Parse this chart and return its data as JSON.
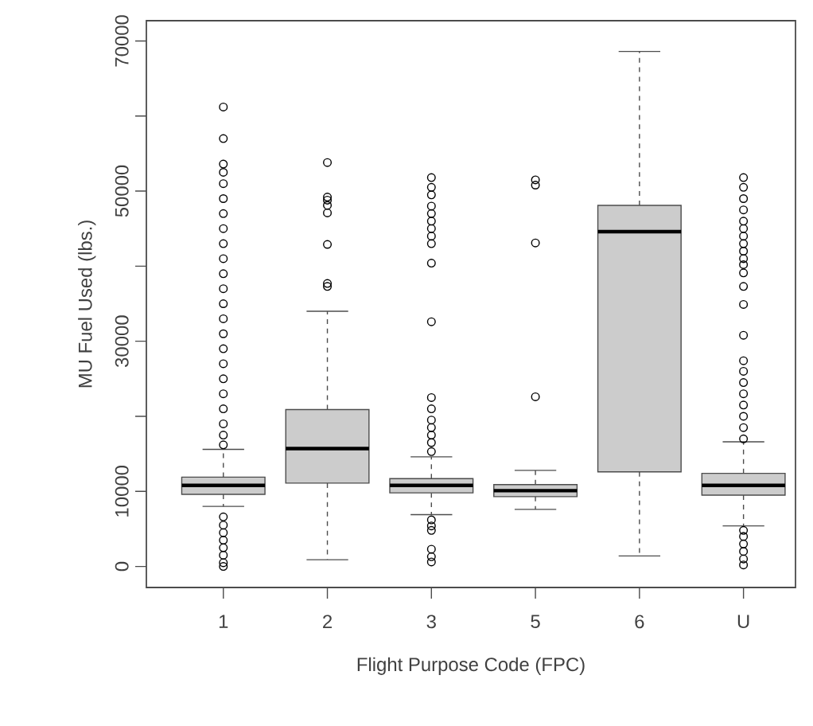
{
  "chart_data": {
    "type": "box",
    "xlabel": "Flight Purpose Code (FPC)",
    "ylabel": "MU Fuel Used (lbs.)",
    "categories": [
      "1",
      "2",
      "3",
      "5",
      "6",
      "U"
    ],
    "color": "#cccccc",
    "boxes": [
      {
        "low": 8000,
        "q1": 9600,
        "median": 10800,
        "q3": 11900,
        "high": 15600,
        "outliers": [
          61200,
          57000,
          53600,
          52500,
          51000,
          49000,
          47000,
          45000,
          43000,
          41000,
          39000,
          37000,
          35000,
          33000,
          31000,
          29000,
          27000,
          25000,
          23000,
          21000,
          19000,
          17500,
          16200,
          6600,
          5500,
          4500,
          3500,
          2500,
          1500,
          500,
          0
        ]
      },
      {
        "low": 900,
        "q1": 11100,
        "median": 15700,
        "q3": 20900,
        "high": 34000,
        "outliers": [
          53800,
          49200,
          48800,
          48100,
          47100,
          42900,
          37700,
          37300
        ]
      },
      {
        "low": 6900,
        "q1": 9800,
        "median": 10800,
        "q3": 11700,
        "high": 14600,
        "outliers": [
          51800,
          50500,
          49500,
          48000,
          47000,
          46000,
          45000,
          44000,
          43000,
          40400,
          32600,
          22500,
          21000,
          19500,
          18500,
          17500,
          16500,
          15300,
          6200,
          5400,
          4800,
          2300,
          1300,
          600
        ]
      },
      {
        "low": 7600,
        "q1": 9300,
        "median": 10100,
        "q3": 10900,
        "high": 12800,
        "outliers": [
          51500,
          50800,
          43100,
          22600
        ]
      },
      {
        "low": 1400,
        "q1": 12600,
        "median": 44600,
        "q3": 48100,
        "high": 68600
      },
      {
        "low": 5400,
        "q1": 9500,
        "median": 10800,
        "q3": 12400,
        "high": 16600,
        "outliers": [
          51800,
          50500,
          49000,
          47500,
          46000,
          45000,
          44000,
          43000,
          42000,
          41000,
          40200,
          39100,
          37300,
          34900,
          30800,
          27400,
          26000,
          24500,
          23000,
          21500,
          20000,
          18500,
          17000,
          4800,
          4000,
          3000,
          2000,
          1000,
          200
        ]
      }
    ],
    "ylim": [
      -2800,
      72700
    ],
    "yticks": [
      0,
      10000,
      {
        "value": 20000,
        "label": null
      },
      30000,
      {
        "value": 40000,
        "label": null
      },
      50000,
      {
        "value": 60000,
        "label": null
      },
      70000
    ],
    "grid": false
  }
}
